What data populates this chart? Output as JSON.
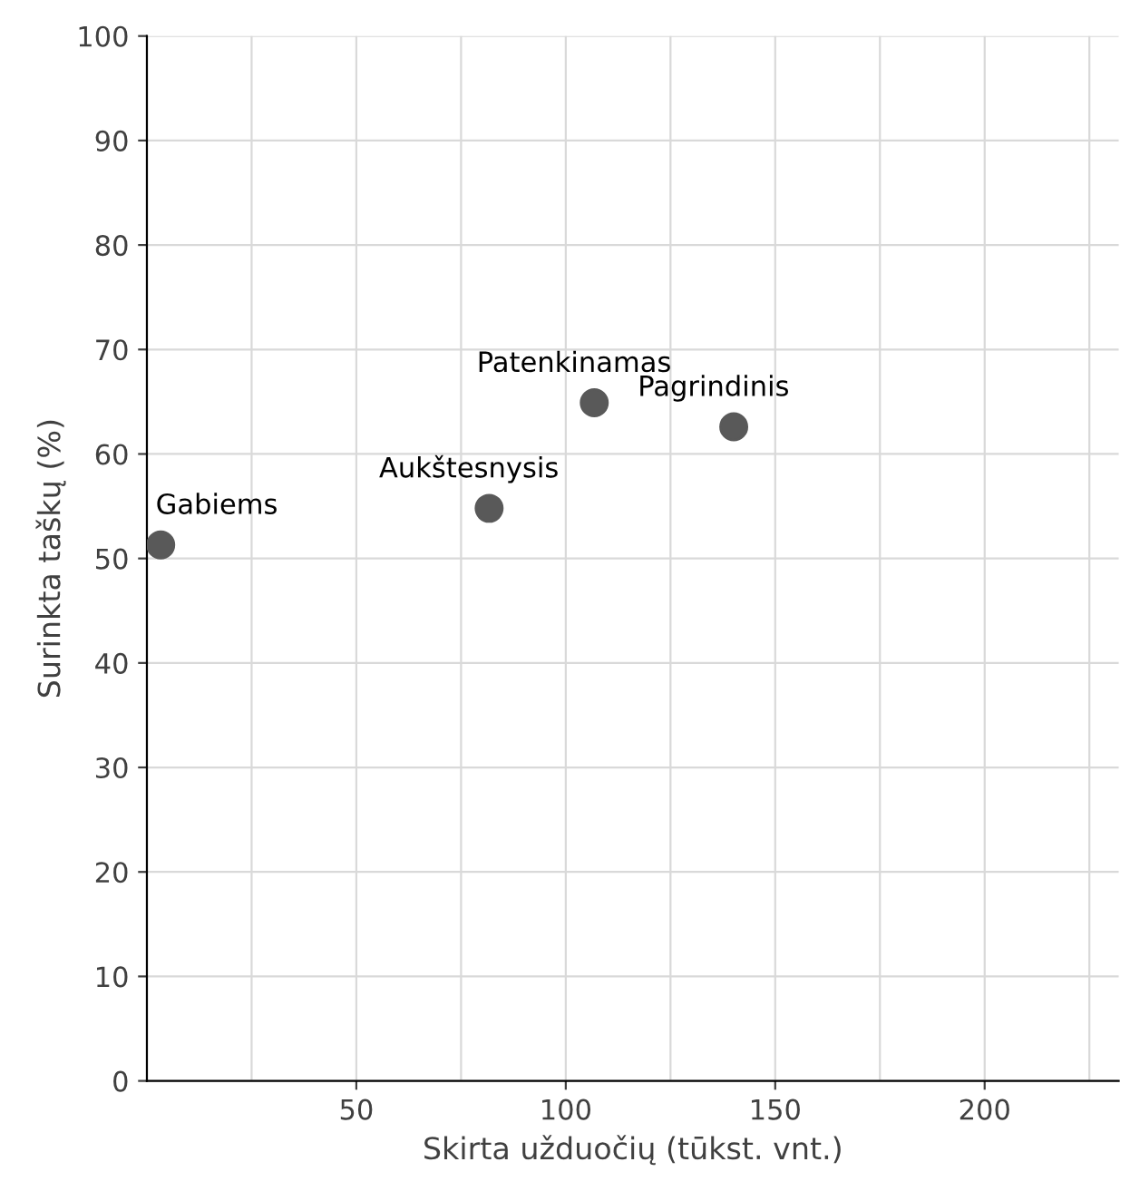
{
  "chart_data": {
    "type": "scatter",
    "xlabel": "Skirta užduočių (tūkst. vnt.)",
    "ylabel": "Surinkta taškų (%)",
    "x": [
      3.3,
      81.7,
      106.8,
      140.1
    ],
    "series": [
      {
        "color": "#595959",
        "values": [
          51.3,
          54.8,
          64.9,
          62.6
        ]
      }
    ],
    "annotations": [
      {
        "text": "Gabiems",
        "x": 3.3,
        "y": 51.3
      },
      {
        "text": "Aukštesnysis",
        "x": 81.7,
        "y": 54.8
      },
      {
        "text": "Patenkinamas",
        "x": 106.8,
        "y": 64.9
      },
      {
        "text": "Pagrindinis",
        "x": 140.1,
        "y": 62.6
      }
    ],
    "xlim": [
      0,
      232
    ],
    "ylim": [
      0,
      100
    ],
    "xticks": [
      {
        "value": 25,
        "label": null
      },
      50,
      {
        "value": 75,
        "label": null
      },
      100,
      {
        "value": 125,
        "label": null
      },
      150,
      {
        "value": 175,
        "label": null
      },
      200,
      {
        "value": 225,
        "label": null
      }
    ],
    "yticks": [
      0,
      10,
      20,
      30,
      40,
      50,
      60,
      70,
      80,
      90,
      100
    ],
    "grid": true,
    "marker": "circle",
    "legend": false
  }
}
